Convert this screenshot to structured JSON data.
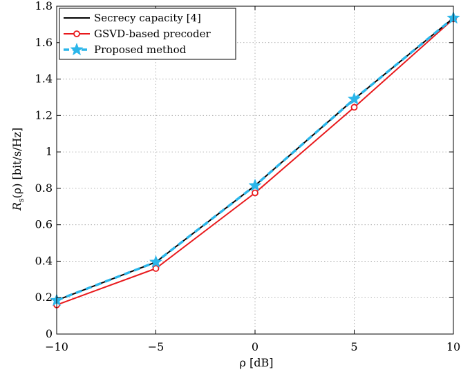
{
  "chart_data": {
    "type": "line",
    "x": [
      -10,
      -5,
      0,
      5,
      10
    ],
    "xlim": [
      -10,
      10
    ],
    "ylim": [
      0,
      1.8
    ],
    "xticks": [
      -10,
      -5,
      0,
      5,
      10
    ],
    "xtick_labels": [
      "−10",
      "−5",
      "0",
      "5",
      "10"
    ],
    "yticks": [
      0,
      0.2,
      0.4,
      0.6,
      0.8,
      1,
      1.2,
      1.4,
      1.6,
      1.8
    ],
    "ytick_labels": [
      "0",
      "0.2",
      "0.4",
      "0.6",
      "0.8",
      "1",
      "1.2",
      "1.4",
      "1.6",
      "1.8"
    ],
    "xlabel": "ρ [dB]",
    "ylabel": "R_s(ρ) [bit/s/Hz]",
    "ylabel_parts": {
      "main": "R",
      "sub": "s",
      "rest": "(ρ) [bit/s/Hz]"
    },
    "grid": true,
    "legend_position": "top-left",
    "series": [
      {
        "name": "Secrecy capacity [4]",
        "values": [
          0.185,
          0.395,
          0.815,
          1.29,
          1.735
        ],
        "color": "#000000",
        "style": "solid",
        "marker": "none"
      },
      {
        "name": "GSVD-based precoder",
        "values": [
          0.16,
          0.36,
          0.775,
          1.245,
          1.73
        ],
        "color": "#e8191c",
        "style": "solid",
        "marker": "circle"
      },
      {
        "name": "Proposed method",
        "values": [
          0.185,
          0.395,
          0.815,
          1.29,
          1.735
        ],
        "color": "#2bb6ea",
        "style": "dashed",
        "marker": "star"
      }
    ]
  }
}
